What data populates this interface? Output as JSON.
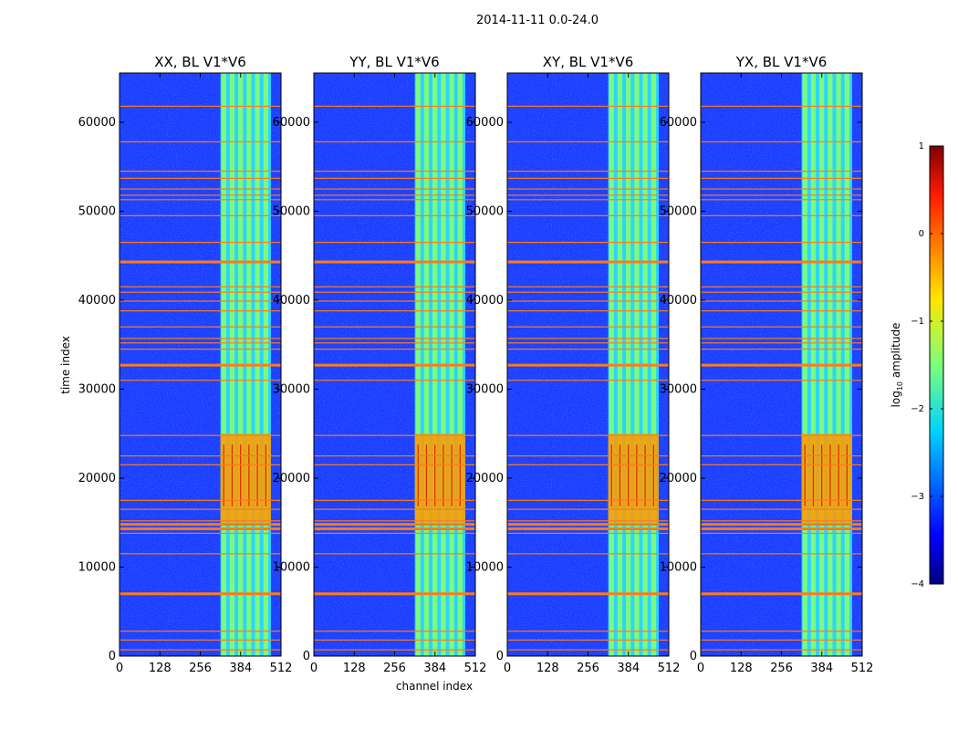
{
  "figure": {
    "suptitle": "2014-11-11 0.0-24.0"
  },
  "chart_data": {
    "type": "heatmap",
    "title": "2014-11-11 0.0-24.0",
    "xlabel": "channel index",
    "ylabel": "time index",
    "xlim": [
      0,
      512
    ],
    "ylim": [
      0,
      65536
    ],
    "xticks": [
      0,
      128,
      256,
      384,
      512
    ],
    "yticks": [
      0,
      10000,
      20000,
      30000,
      40000,
      50000,
      60000
    ],
    "xtick_labels": [
      "0",
      "128",
      "256",
      "384",
      "512"
    ],
    "ytick_labels": [
      "0",
      "10000",
      "20000",
      "30000",
      "40000",
      "50000",
      "60000"
    ],
    "panels": [
      {
        "title": "XX, BL V1*V6",
        "polarization": "XX"
      },
      {
        "title": "YY, BL V1*V6",
        "polarization": "YY"
      },
      {
        "title": "XY, BL V1*V6",
        "polarization": "XY"
      },
      {
        "title": "YX, BL V1*V6",
        "polarization": "YX"
      }
    ],
    "colorbar": {
      "label": "log10 amplitude",
      "label_prefix": "log",
      "label_subscript": "10",
      "label_suffix": " amplitude",
      "range": [
        -4,
        1
      ],
      "ticks": [
        1,
        0,
        -1,
        -2,
        -3,
        -4
      ],
      "tick_labels": [
        "1",
        "0",
        "−1",
        "−2",
        "−3",
        "−4"
      ],
      "colormap": "jet"
    },
    "signal_band": {
      "channel_start": 320,
      "channel_end": 480
    },
    "bright_region": {
      "time_start": 15000,
      "time_end": 25000
    },
    "flagged_times": [
      700,
      1800,
      2800,
      7000,
      11500,
      13800,
      14300,
      14800,
      15200,
      16500,
      17500,
      21500,
      22500,
      24800,
      31000,
      32700,
      34500,
      35200,
      35700,
      37000,
      38800,
      39900,
      40900,
      41500,
      44300,
      46500,
      49500,
      51300,
      51800,
      52500,
      53700,
      54500,
      57800,
      61800
    ],
    "thick_flags": [
      7000,
      14300,
      14800,
      32700,
      44300
    ]
  }
}
